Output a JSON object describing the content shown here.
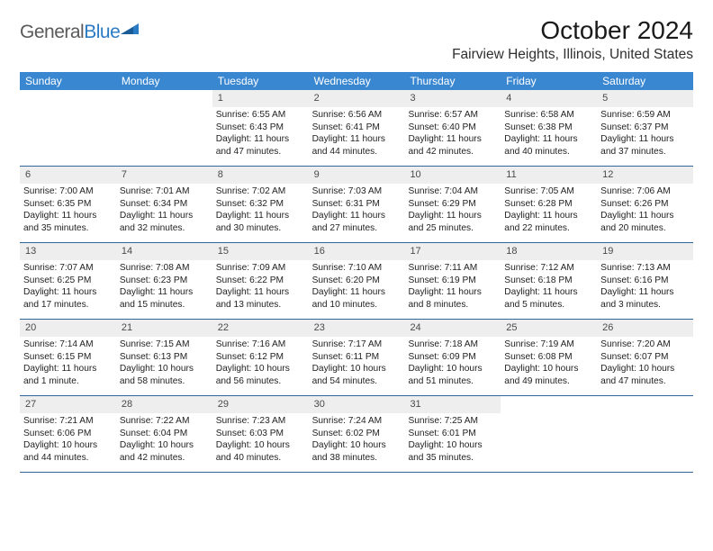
{
  "logo": {
    "word1": "General",
    "word2": "Blue"
  },
  "title": "October 2024",
  "subtitle": "Fairview Heights, Illinois, United States",
  "colors": {
    "header_bg": "#3a87d1",
    "week_border": "#316699",
    "daynum_bg": "#eeeeee",
    "logo_gray": "#5a5a5a",
    "logo_blue": "#2b7bc4"
  },
  "dow": [
    "Sunday",
    "Monday",
    "Tuesday",
    "Wednesday",
    "Thursday",
    "Friday",
    "Saturday"
  ],
  "weeks": [
    [
      null,
      null,
      {
        "n": "1",
        "lines": [
          "Sunrise: 6:55 AM",
          "Sunset: 6:43 PM",
          "Daylight: 11 hours and 47 minutes."
        ]
      },
      {
        "n": "2",
        "lines": [
          "Sunrise: 6:56 AM",
          "Sunset: 6:41 PM",
          "Daylight: 11 hours and 44 minutes."
        ]
      },
      {
        "n": "3",
        "lines": [
          "Sunrise: 6:57 AM",
          "Sunset: 6:40 PM",
          "Daylight: 11 hours and 42 minutes."
        ]
      },
      {
        "n": "4",
        "lines": [
          "Sunrise: 6:58 AM",
          "Sunset: 6:38 PM",
          "Daylight: 11 hours and 40 minutes."
        ]
      },
      {
        "n": "5",
        "lines": [
          "Sunrise: 6:59 AM",
          "Sunset: 6:37 PM",
          "Daylight: 11 hours and 37 minutes."
        ]
      }
    ],
    [
      {
        "n": "6",
        "lines": [
          "Sunrise: 7:00 AM",
          "Sunset: 6:35 PM",
          "Daylight: 11 hours and 35 minutes."
        ]
      },
      {
        "n": "7",
        "lines": [
          "Sunrise: 7:01 AM",
          "Sunset: 6:34 PM",
          "Daylight: 11 hours and 32 minutes."
        ]
      },
      {
        "n": "8",
        "lines": [
          "Sunrise: 7:02 AM",
          "Sunset: 6:32 PM",
          "Daylight: 11 hours and 30 minutes."
        ]
      },
      {
        "n": "9",
        "lines": [
          "Sunrise: 7:03 AM",
          "Sunset: 6:31 PM",
          "Daylight: 11 hours and 27 minutes."
        ]
      },
      {
        "n": "10",
        "lines": [
          "Sunrise: 7:04 AM",
          "Sunset: 6:29 PM",
          "Daylight: 11 hours and 25 minutes."
        ]
      },
      {
        "n": "11",
        "lines": [
          "Sunrise: 7:05 AM",
          "Sunset: 6:28 PM",
          "Daylight: 11 hours and 22 minutes."
        ]
      },
      {
        "n": "12",
        "lines": [
          "Sunrise: 7:06 AM",
          "Sunset: 6:26 PM",
          "Daylight: 11 hours and 20 minutes."
        ]
      }
    ],
    [
      {
        "n": "13",
        "lines": [
          "Sunrise: 7:07 AM",
          "Sunset: 6:25 PM",
          "Daylight: 11 hours and 17 minutes."
        ]
      },
      {
        "n": "14",
        "lines": [
          "Sunrise: 7:08 AM",
          "Sunset: 6:23 PM",
          "Daylight: 11 hours and 15 minutes."
        ]
      },
      {
        "n": "15",
        "lines": [
          "Sunrise: 7:09 AM",
          "Sunset: 6:22 PM",
          "Daylight: 11 hours and 13 minutes."
        ]
      },
      {
        "n": "16",
        "lines": [
          "Sunrise: 7:10 AM",
          "Sunset: 6:20 PM",
          "Daylight: 11 hours and 10 minutes."
        ]
      },
      {
        "n": "17",
        "lines": [
          "Sunrise: 7:11 AM",
          "Sunset: 6:19 PM",
          "Daylight: 11 hours and 8 minutes."
        ]
      },
      {
        "n": "18",
        "lines": [
          "Sunrise: 7:12 AM",
          "Sunset: 6:18 PM",
          "Daylight: 11 hours and 5 minutes."
        ]
      },
      {
        "n": "19",
        "lines": [
          "Sunrise: 7:13 AM",
          "Sunset: 6:16 PM",
          "Daylight: 11 hours and 3 minutes."
        ]
      }
    ],
    [
      {
        "n": "20",
        "lines": [
          "Sunrise: 7:14 AM",
          "Sunset: 6:15 PM",
          "Daylight: 11 hours and 1 minute."
        ]
      },
      {
        "n": "21",
        "lines": [
          "Sunrise: 7:15 AM",
          "Sunset: 6:13 PM",
          "Daylight: 10 hours and 58 minutes."
        ]
      },
      {
        "n": "22",
        "lines": [
          "Sunrise: 7:16 AM",
          "Sunset: 6:12 PM",
          "Daylight: 10 hours and 56 minutes."
        ]
      },
      {
        "n": "23",
        "lines": [
          "Sunrise: 7:17 AM",
          "Sunset: 6:11 PM",
          "Daylight: 10 hours and 54 minutes."
        ]
      },
      {
        "n": "24",
        "lines": [
          "Sunrise: 7:18 AM",
          "Sunset: 6:09 PM",
          "Daylight: 10 hours and 51 minutes."
        ]
      },
      {
        "n": "25",
        "lines": [
          "Sunrise: 7:19 AM",
          "Sunset: 6:08 PM",
          "Daylight: 10 hours and 49 minutes."
        ]
      },
      {
        "n": "26",
        "lines": [
          "Sunrise: 7:20 AM",
          "Sunset: 6:07 PM",
          "Daylight: 10 hours and 47 minutes."
        ]
      }
    ],
    [
      {
        "n": "27",
        "lines": [
          "Sunrise: 7:21 AM",
          "Sunset: 6:06 PM",
          "Daylight: 10 hours and 44 minutes."
        ]
      },
      {
        "n": "28",
        "lines": [
          "Sunrise: 7:22 AM",
          "Sunset: 6:04 PM",
          "Daylight: 10 hours and 42 minutes."
        ]
      },
      {
        "n": "29",
        "lines": [
          "Sunrise: 7:23 AM",
          "Sunset: 6:03 PM",
          "Daylight: 10 hours and 40 minutes."
        ]
      },
      {
        "n": "30",
        "lines": [
          "Sunrise: 7:24 AM",
          "Sunset: 6:02 PM",
          "Daylight: 10 hours and 38 minutes."
        ]
      },
      {
        "n": "31",
        "lines": [
          "Sunrise: 7:25 AM",
          "Sunset: 6:01 PM",
          "Daylight: 10 hours and 35 minutes."
        ]
      },
      null,
      null
    ]
  ]
}
